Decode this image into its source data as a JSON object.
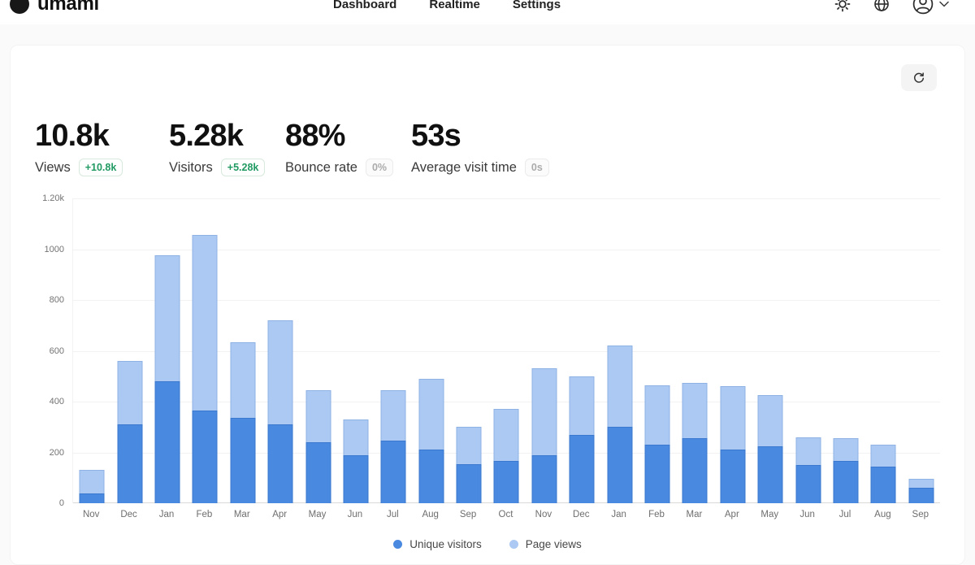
{
  "nav": {
    "brand": "umami",
    "items": [
      "Dashboard",
      "Realtime",
      "Settings"
    ],
    "icons": [
      "sun-icon",
      "globe-icon",
      "user-avatar-icon",
      "chevron-down-icon"
    ]
  },
  "toolbar": {
    "refresh_icon": "refresh-icon"
  },
  "stats": [
    {
      "value": "10.8k",
      "label": "Views",
      "change": "+10.8k",
      "change_type": "positive"
    },
    {
      "value": "5.28k",
      "label": "Visitors",
      "change": "+5.28k",
      "change_type": "positive"
    },
    {
      "value": "88%",
      "label": "Bounce rate",
      "change": "0%",
      "change_type": "neutral"
    },
    {
      "value": "53s",
      "label": "Average visit time",
      "change": "0s",
      "change_type": "neutral"
    }
  ],
  "chart_data": {
    "type": "bar",
    "categories": [
      "Nov",
      "Dec",
      "Jan",
      "Feb",
      "Mar",
      "Apr",
      "May",
      "Jun",
      "Jul",
      "Aug",
      "Sep",
      "Oct",
      "Nov",
      "Dec",
      "Jan",
      "Feb",
      "Mar",
      "Apr",
      "May",
      "Jun",
      "Jul",
      "Aug",
      "Sep"
    ],
    "series": [
      {
        "name": "Unique visitors",
        "color": "#4a89e0",
        "values": [
          40,
          310,
          480,
          365,
          335,
          310,
          240,
          190,
          245,
          210,
          155,
          165,
          190,
          270,
          300,
          230,
          255,
          210,
          225,
          150,
          165,
          145,
          60
        ]
      },
      {
        "name": "Page views",
        "color": "#abc9f2",
        "values": [
          130,
          560,
          975,
          1055,
          635,
          720,
          445,
          330,
          445,
          490,
          300,
          370,
          530,
          500,
          620,
          465,
          475,
          460,
          425,
          260,
          255,
          230,
          95
        ]
      }
    ],
    "ylim": [
      0,
      1200
    ],
    "yticks": [
      {
        "label": "1.20k",
        "value": 1200
      },
      {
        "label": "1000",
        "value": 1000
      },
      {
        "label": "800",
        "value": 800
      },
      {
        "label": "600",
        "value": 600
      },
      {
        "label": "400",
        "value": 400
      },
      {
        "label": "200",
        "value": 200
      },
      {
        "label": "0",
        "value": 0
      }
    ],
    "grid": true,
    "legend_position": "bottom",
    "title": "",
    "xlabel": "",
    "ylabel": ""
  },
  "colors": {
    "page_bg": "#fafafa",
    "card_bg": "#ffffff",
    "bar_visitors": "#4a89e0",
    "bar_pageviews": "#abc9f2",
    "positive_green": "#229a63"
  }
}
